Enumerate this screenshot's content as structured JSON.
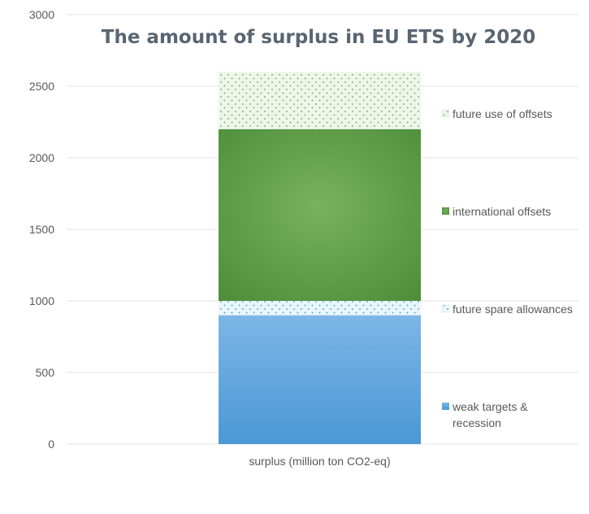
{
  "chart_data": {
    "type": "bar",
    "stacked": true,
    "title": "The amount of surplus in EU ETS by 2020",
    "categories": [
      "surplus (million ton CO2-eq)"
    ],
    "ylim": [
      0,
      3000
    ],
    "yticks": [
      0,
      500,
      1000,
      1500,
      2000,
      2500,
      3000
    ],
    "grid": true,
    "legend_position": "right",
    "series": [
      {
        "name": "weak targets & recession",
        "values": [
          900
        ],
        "color": "#5aa3dc",
        "pattern": "solid-blue"
      },
      {
        "name": "future spare allowances",
        "values": [
          100
        ],
        "color": "#4bb8d6",
        "pattern": "dotted-cyan"
      },
      {
        "name": "international offsets",
        "values": [
          1200
        ],
        "color": "#62a24a",
        "pattern": "solid-green"
      },
      {
        "name": "future use of offsets",
        "values": [
          400
        ],
        "color": "#8cc47a",
        "pattern": "dotted-green"
      }
    ],
    "legend_order": [
      3,
      2,
      1,
      0
    ],
    "legend_lines": [
      [
        "future use of offsets"
      ],
      [
        "international offsets"
      ],
      [
        "future spare allowances"
      ],
      [
        "weak targets &",
        "recession"
      ]
    ]
  }
}
